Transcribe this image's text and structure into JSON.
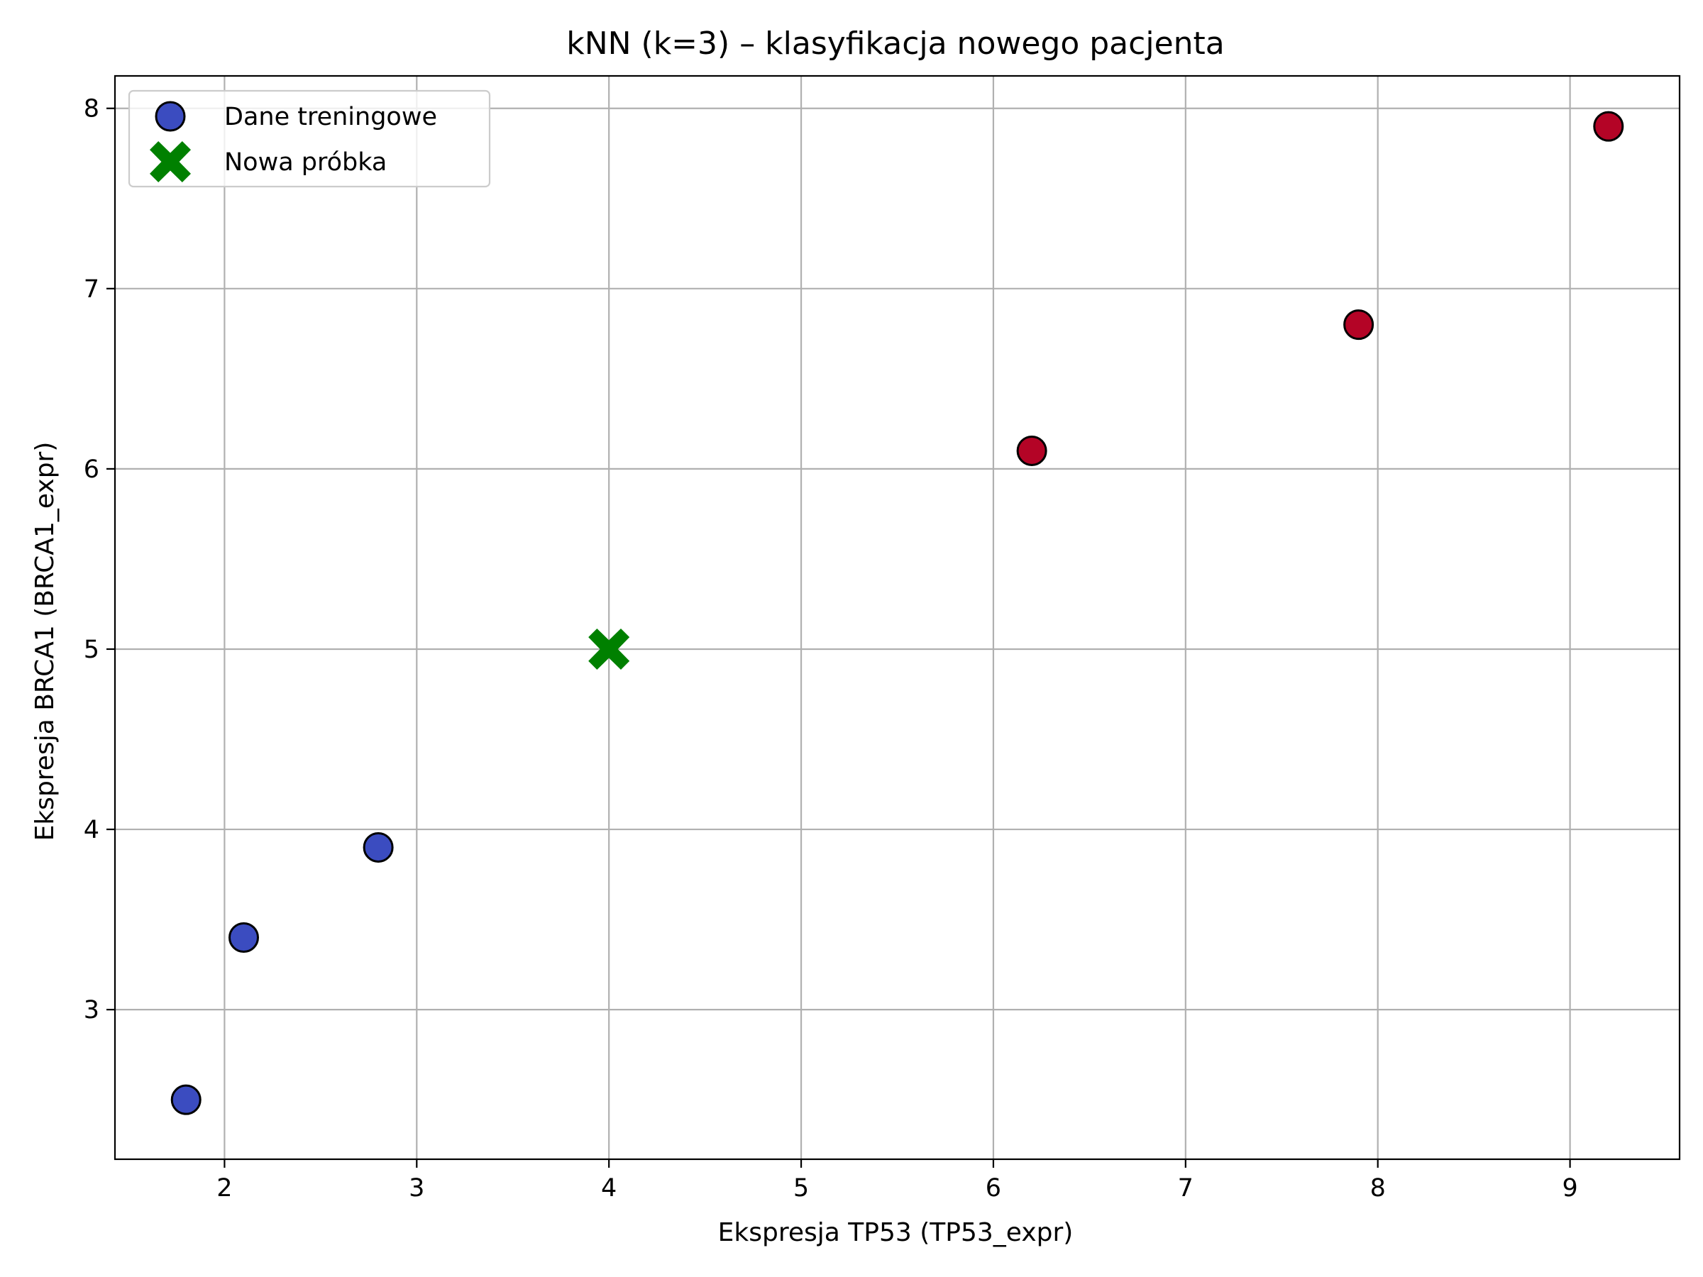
{
  "chart_data": {
    "type": "scatter",
    "title": "kNN (k=3) – klasyfikacja nowego pacjenta",
    "xlabel": "Ekspresja TP53 (TP53_expr)",
    "ylabel": "Ekspresja BRCA1 (BRCA1_expr)",
    "xlim": [
      1.43,
      9.57
    ],
    "ylim": [
      2.17,
      8.18
    ],
    "xticks": [
      2,
      3,
      4,
      5,
      6,
      7,
      8,
      9
    ],
    "yticks": [
      3,
      4,
      5,
      6,
      7,
      8
    ],
    "grid": true,
    "legend_position": "top-left",
    "legend": [
      {
        "label": "Dane treningowe",
        "marker": "circle",
        "color": "#3b4cc0"
      },
      {
        "label": "Nowa próbka",
        "marker": "x",
        "color": "#008000"
      }
    ],
    "series": [
      {
        "name": "Dane treningowe",
        "marker": "circle",
        "points": [
          {
            "x": 1.8,
            "y": 2.5,
            "color": "#3b4cc0"
          },
          {
            "x": 2.1,
            "y": 3.4,
            "color": "#3b4cc0"
          },
          {
            "x": 2.8,
            "y": 3.9,
            "color": "#3b4cc0"
          },
          {
            "x": 6.2,
            "y": 6.1,
            "color": "#b40426"
          },
          {
            "x": 7.9,
            "y": 6.8,
            "color": "#b40426"
          },
          {
            "x": 9.2,
            "y": 7.9,
            "color": "#b40426"
          }
        ]
      },
      {
        "name": "Nowa próbka",
        "marker": "x",
        "points": [
          {
            "x": 4.0,
            "y": 5.0,
            "color": "#008000"
          }
        ]
      }
    ]
  }
}
